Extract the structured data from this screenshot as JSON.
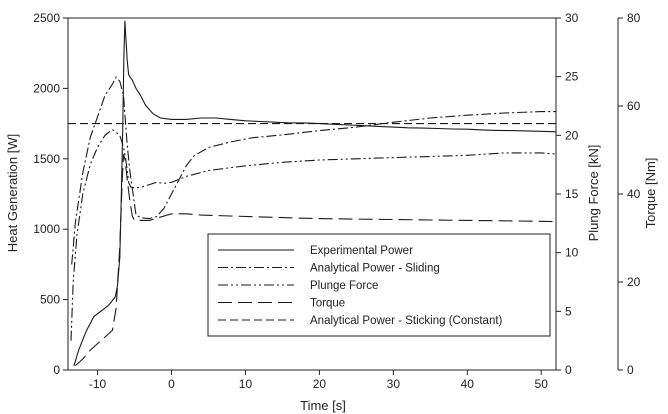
{
  "chart_data": {
    "type": "line",
    "xlabel": "Time [s]",
    "xlim": [
      -14,
      52
    ],
    "x_ticks": [
      -10,
      0,
      10,
      20,
      30,
      40,
      50
    ],
    "axes": {
      "left": {
        "label": "Heat Generation [W]",
        "ylim": [
          0,
          2500
        ],
        "ticks": [
          0,
          500,
          1000,
          1500,
          2000,
          2500
        ]
      },
      "right1": {
        "label": "Plung Force [kN]",
        "ylim": [
          0,
          30
        ],
        "ticks": [
          0,
          5,
          10,
          15,
          20,
          25,
          30
        ]
      },
      "right2": {
        "label": "Torque [Nm]",
        "ylim": [
          0,
          80
        ],
        "ticks": [
          0,
          20,
          40,
          60,
          80
        ]
      }
    },
    "legend_position": "lower-center",
    "grid": false,
    "series": [
      {
        "name": "Experimental Power",
        "axis": "left",
        "dash": "",
        "x": [
          -13.2,
          -12.5,
          -11.5,
          -10.5,
          -9.5,
          -8.5,
          -7.6,
          -7.3,
          -7.0,
          -6.8,
          -6.6,
          -6.45,
          -6.3,
          -6.2,
          -6.0,
          -5.8,
          -5.6,
          -5.3,
          -4.8,
          -4.2,
          -3.5,
          -2.5,
          -1.5,
          0,
          2,
          4,
          6,
          8,
          10,
          12,
          14,
          16,
          18,
          20,
          22,
          24,
          26,
          28,
          30,
          32,
          34,
          36,
          38,
          40,
          42,
          44,
          46,
          48,
          50,
          52
        ],
        "y": [
          30,
          150,
          280,
          380,
          420,
          460,
          520,
          600,
          800,
          1200,
          1700,
          2200,
          2480,
          2380,
          2200,
          2100,
          2080,
          2060,
          2000,
          1950,
          1880,
          1820,
          1790,
          1780,
          1780,
          1790,
          1790,
          1780,
          1770,
          1765,
          1760,
          1755,
          1755,
          1750,
          1745,
          1740,
          1735,
          1730,
          1725,
          1720,
          1718,
          1715,
          1712,
          1710,
          1705,
          1702,
          1700,
          1698,
          1695,
          1692
        ]
      },
      {
        "name": "Analytical Power - Sliding",
        "axis": "left",
        "dash": "10,3,2,3",
        "x": [
          -13.5,
          -13.0,
          -12.0,
          -11.0,
          -10.0,
          -9.0,
          -8.0,
          -7.5,
          -7.0,
          -6.5,
          -6.0,
          -5.6,
          -5.2,
          -4.8,
          -4.0,
          -3.0,
          -2.0,
          -1.0,
          0,
          1,
          2,
          3,
          5,
          8,
          11,
          15,
          20,
          25,
          30,
          35,
          40,
          45,
          50,
          52
        ],
        "y": [
          750,
          1050,
          1400,
          1650,
          1800,
          1950,
          2030,
          2080,
          2050,
          1950,
          1600,
          1400,
          1250,
          1100,
          1080,
          1075,
          1090,
          1150,
          1250,
          1350,
          1450,
          1520,
          1580,
          1620,
          1650,
          1670,
          1700,
          1725,
          1760,
          1790,
          1810,
          1825,
          1835,
          1835
        ]
      },
      {
        "name": "Plunge Force",
        "axis": "right1",
        "dash": "10,3,2,3,2,3",
        "x": [
          -13.6,
          -13.3,
          -12.8,
          -12.0,
          -11.0,
          -10.0,
          -9.0,
          -8.0,
          -7.0,
          -6.5,
          -6.2,
          -6.0,
          -5.8,
          -5.5,
          -5.0,
          -4.0,
          -3.0,
          -2.0,
          -1.0,
          0,
          2,
          5,
          10,
          15,
          20,
          25,
          30,
          35,
          40,
          45,
          50,
          52
        ],
        "y": [
          2.5,
          7.5,
          11.5,
          15.0,
          17.5,
          19.0,
          20.0,
          20.5,
          20.0,
          19.0,
          18.0,
          17.0,
          16.0,
          15.6,
          15.5,
          15.6,
          15.8,
          16.0,
          15.9,
          16.0,
          16.5,
          17.0,
          17.4,
          17.7,
          17.9,
          18.0,
          18.1,
          18.2,
          18.3,
          18.5,
          18.5,
          18.4
        ]
      },
      {
        "name": "Torque",
        "axis": "right2",
        "dash": "14,6",
        "x": [
          -13.0,
          -12.0,
          -11.0,
          -10.0,
          -9.0,
          -8.0,
          -7.5,
          -7.0,
          -6.7,
          -6.5,
          -6.3,
          -6.1,
          -5.9,
          -5.6,
          -5.3,
          -5.0,
          -4.5,
          -4.0,
          -3.0,
          -2.0,
          -1.0,
          0,
          2,
          4,
          8,
          12,
          16,
          20,
          25,
          30,
          35,
          40,
          45,
          50,
          52
        ],
        "y": [
          1,
          2.5,
          4.5,
          6,
          7.5,
          9,
          14,
          28,
          42,
          49,
          48,
          45,
          42,
          38,
          35,
          34,
          34,
          34,
          34,
          34.5,
          35,
          35.5,
          35.5,
          35.2,
          35,
          34.8,
          34.6,
          34.4,
          34.3,
          34.2,
          34.1,
          34,
          33.9,
          33.8,
          33.7
        ]
      },
      {
        "name": "Analytical Power - Sticking (Constant)",
        "axis": "left",
        "dash": "8,4",
        "x": [
          -14.0,
          52.0
        ],
        "y": [
          1750,
          1750
        ]
      }
    ]
  }
}
